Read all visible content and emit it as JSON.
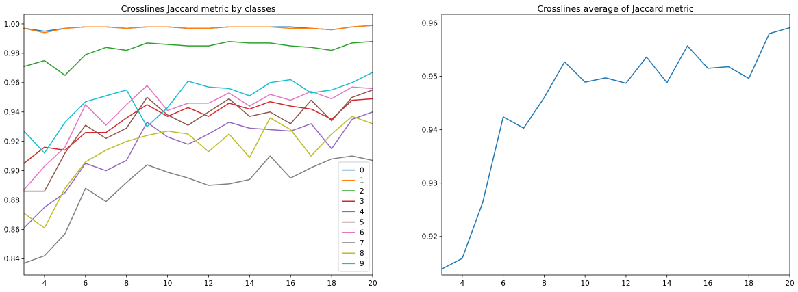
{
  "chart_data": [
    {
      "type": "line",
      "title": "Crosslines Jaccard metric by classes",
      "xlabel": "",
      "ylabel": "",
      "xlim": [
        3,
        20
      ],
      "ylim": [
        0.829,
        1.0065
      ],
      "xticks": [
        4,
        6,
        8,
        10,
        12,
        14,
        16,
        18,
        20
      ],
      "yticks": [
        0.84,
        0.86,
        0.88,
        0.9,
        0.92,
        0.94,
        0.96,
        0.98,
        1.0
      ],
      "ytick_labels": [
        "0.84",
        "0.86",
        "0.88",
        "0.90",
        "0.92",
        "0.94",
        "0.96",
        "0.98",
        "1.00"
      ],
      "legend_position": "lower-right",
      "x": [
        3,
        4,
        5,
        6,
        7,
        8,
        9,
        10,
        11,
        12,
        13,
        14,
        15,
        16,
        17,
        18,
        19,
        20
      ],
      "series": [
        {
          "name": "0",
          "color": "#1f77b4",
          "values": [
            0.997,
            0.995,
            0.997,
            0.998,
            0.998,
            0.997,
            0.998,
            0.998,
            0.997,
            0.997,
            0.998,
            0.998,
            0.998,
            0.998,
            0.997,
            0.996,
            0.998,
            0.999
          ]
        },
        {
          "name": "1",
          "color": "#ff7f0e",
          "values": [
            0.997,
            0.994,
            0.997,
            0.998,
            0.998,
            0.997,
            0.998,
            0.998,
            0.997,
            0.997,
            0.998,
            0.998,
            0.998,
            0.997,
            0.997,
            0.996,
            0.998,
            0.999
          ]
        },
        {
          "name": "2",
          "color": "#2ca02c",
          "values": [
            0.971,
            0.975,
            0.965,
            0.979,
            0.984,
            0.982,
            0.987,
            0.986,
            0.985,
            0.985,
            0.988,
            0.987,
            0.987,
            0.985,
            0.984,
            0.982,
            0.987,
            0.988
          ]
        },
        {
          "name": "3",
          "color": "#d62728",
          "values": [
            0.905,
            0.916,
            0.914,
            0.926,
            0.926,
            0.936,
            0.945,
            0.937,
            0.943,
            0.937,
            0.946,
            0.942,
            0.947,
            0.944,
            0.942,
            0.935,
            0.948,
            0.949
          ]
        },
        {
          "name": "4",
          "color": "#9467bd",
          "values": [
            0.861,
            0.875,
            0.885,
            0.905,
            0.9,
            0.907,
            0.933,
            0.923,
            0.918,
            0.925,
            0.933,
            0.929,
            0.928,
            0.927,
            0.932,
            0.915,
            0.935,
            0.94
          ]
        },
        {
          "name": "5",
          "color": "#8c564b",
          "values": [
            0.886,
            0.886,
            0.912,
            0.931,
            0.922,
            0.929,
            0.95,
            0.938,
            0.931,
            0.94,
            0.949,
            0.937,
            0.94,
            0.932,
            0.948,
            0.934,
            0.95,
            0.955
          ]
        },
        {
          "name": "6",
          "color": "#e377c2",
          "values": [
            0.887,
            0.903,
            0.916,
            0.945,
            0.931,
            0.945,
            0.958,
            0.941,
            0.946,
            0.946,
            0.953,
            0.944,
            0.952,
            0.948,
            0.954,
            0.949,
            0.957,
            0.956
          ]
        },
        {
          "name": "7",
          "color": "#7f7f7f",
          "values": [
            0.837,
            0.842,
            0.857,
            0.888,
            0.879,
            0.892,
            0.904,
            0.899,
            0.895,
            0.89,
            0.891,
            0.894,
            0.91,
            0.895,
            0.902,
            0.908,
            0.91,
            0.907
          ]
        },
        {
          "name": "8",
          "color": "#bcbd22",
          "values": [
            0.871,
            0.861,
            0.888,
            0.906,
            0.914,
            0.92,
            0.924,
            0.927,
            0.925,
            0.913,
            0.925,
            0.909,
            0.936,
            0.928,
            0.91,
            0.925,
            0.937,
            0.932
          ]
        },
        {
          "name": "9",
          "color": "#17becf",
          "values": [
            0.927,
            0.912,
            0.933,
            0.947,
            0.951,
            0.955,
            0.93,
            0.943,
            0.961,
            0.957,
            0.956,
            0.951,
            0.96,
            0.962,
            0.953,
            0.955,
            0.96,
            0.967
          ]
        }
      ]
    },
    {
      "type": "line",
      "title": "Crosslines average of Jaccard metric",
      "xlabel": "",
      "ylabel": "",
      "xlim": [
        3,
        20
      ],
      "ylim": [
        0.9128,
        0.9616
      ],
      "xticks": [
        4,
        6,
        8,
        10,
        12,
        14,
        16,
        18,
        20
      ],
      "yticks": [
        0.92,
        0.93,
        0.94,
        0.95,
        0.96
      ],
      "ytick_labels": [
        "0.92",
        "0.93",
        "0.94",
        "0.95",
        "0.96"
      ],
      "x": [
        3,
        4,
        5,
        6,
        7,
        8,
        9,
        10,
        11,
        12,
        13,
        14,
        15,
        16,
        17,
        18,
        19,
        20
      ],
      "series": [
        {
          "color": "#1f77b4",
          "values": [
            0.9139,
            0.9159,
            0.9264,
            0.9424,
            0.9403,
            0.946,
            0.9527,
            0.9489,
            0.9497,
            0.9487,
            0.9536,
            0.9488,
            0.9557,
            0.9515,
            0.9518,
            0.9496,
            0.958,
            0.9591
          ]
        }
      ]
    }
  ]
}
